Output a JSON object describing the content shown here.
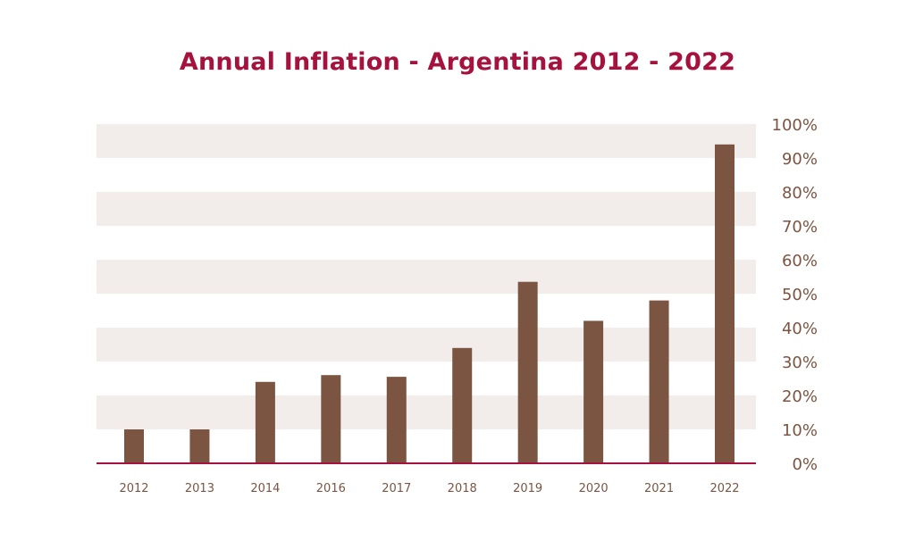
{
  "chart_data": {
    "type": "bar",
    "title": "Annual Inflation - Argentina 2012 - 2022",
    "categories": [
      "2012",
      "2013",
      "2014",
      "2016",
      "2017",
      "2018",
      "2019",
      "2020",
      "2021",
      "2022"
    ],
    "series": [
      {
        "values": [
          10,
          10,
          24,
          26,
          25.5,
          34,
          53.5,
          42,
          48,
          94
        ]
      }
    ],
    "ylim": [
      0,
      100
    ],
    "yticks": [
      0,
      10,
      20,
      30,
      40,
      50,
      60,
      70,
      80,
      90,
      100
    ],
    "ytick_labels": [
      "0%",
      "10%",
      "20%",
      "30%",
      "40%",
      "50%",
      "60%",
      "70%",
      "80%",
      "90%",
      "100%"
    ],
    "y_axis_side": "right",
    "grid": "alternating horizontal bands",
    "legend": "none",
    "colors": {
      "title": "#A5123D",
      "bar": "#7B5542",
      "band": "#F2EDEA",
      "baseline": "#A5123D",
      "tick_label": "#7B5542"
    }
  }
}
